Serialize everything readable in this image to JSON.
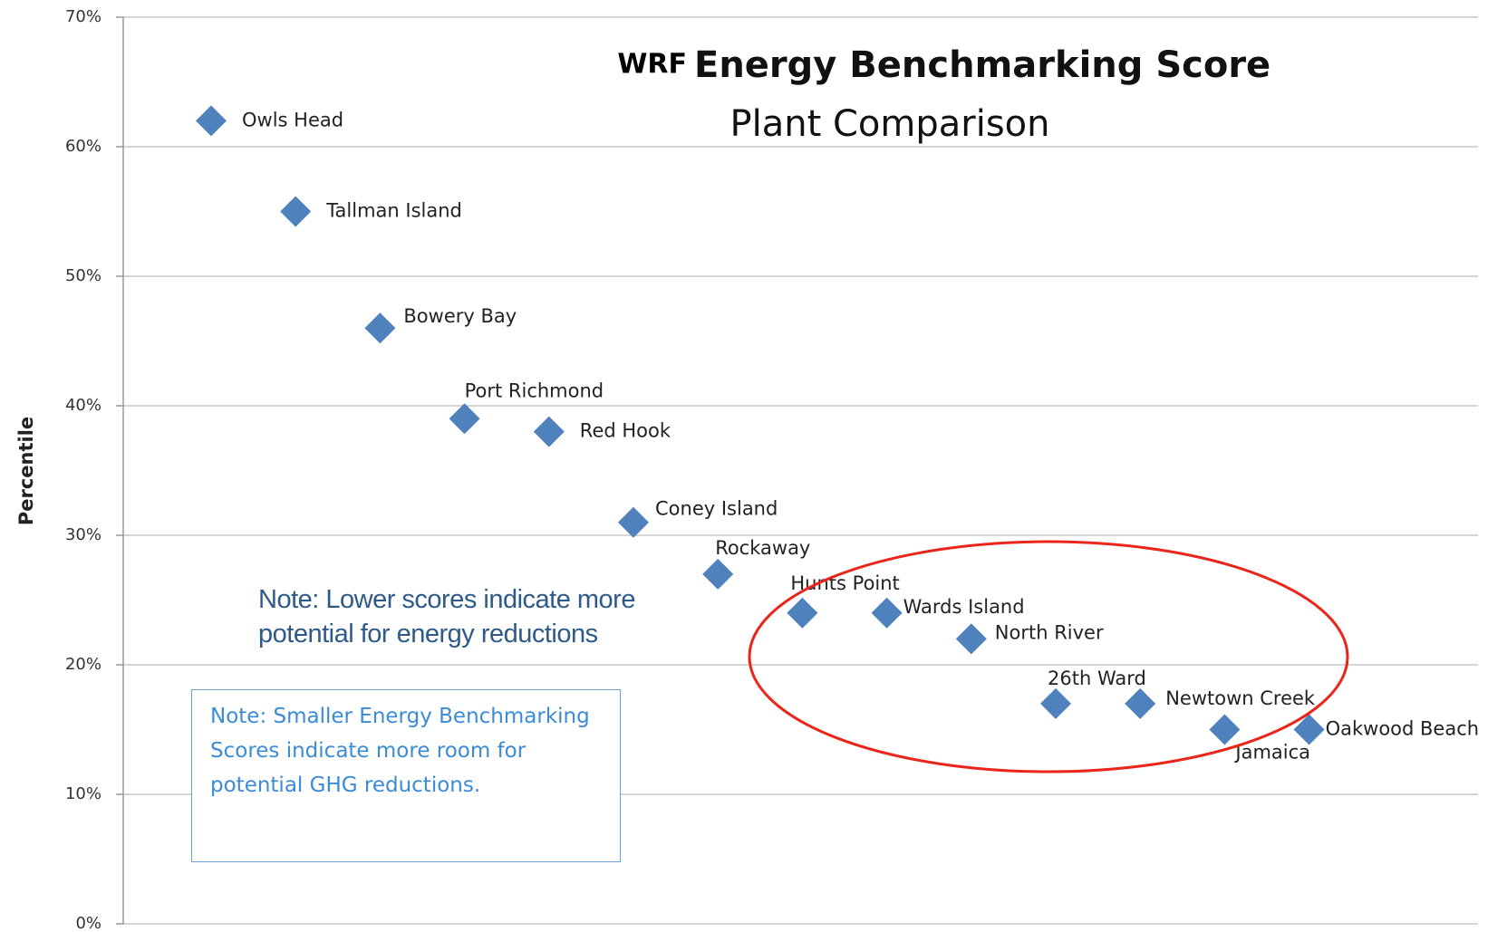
{
  "chart_data": {
    "type": "scatter",
    "title": "Energy Benchmarking Score",
    "title_prefix": "WRF",
    "subtitle": "Plant Comparison",
    "y_label": "Percentile",
    "categories": [
      "Owls Head",
      "Tallman Island",
      "Bowery Bay",
      "Port Richmond",
      "Red Hook",
      "Coney Island",
      "Rockaway",
      "Hunts Point",
      "Wards Island",
      "North River",
      "26th Ward",
      "Newtown Creek",
      "Jamaica",
      "Oakwood Beach"
    ],
    "values": [
      62,
      55,
      46,
      39,
      38,
      31,
      27,
      24,
      24,
      22,
      17,
      17,
      15,
      15
    ],
    "color": "#4f81bd",
    "ylim": [
      0,
      70
    ],
    "yticks": [
      {
        "value": 0,
        "label": "0%"
      },
      {
        "value": 10,
        "label": "10%"
      },
      {
        "value": 20,
        "label": "20%"
      },
      {
        "value": 30,
        "label": "30%"
      },
      {
        "value": 40,
        "label": "40%"
      },
      {
        "value": 50,
        "label": "50%"
      },
      {
        "value": 60,
        "label": "60%"
      },
      {
        "value": 70,
        "label": "70%"
      }
    ],
    "grid": true,
    "annotations": [
      "Note: Lower scores indicate more potential for energy reductions",
      "Note: Smaller Energy Benchmarking Scores indicate more room for potential GHG reductions."
    ]
  }
}
